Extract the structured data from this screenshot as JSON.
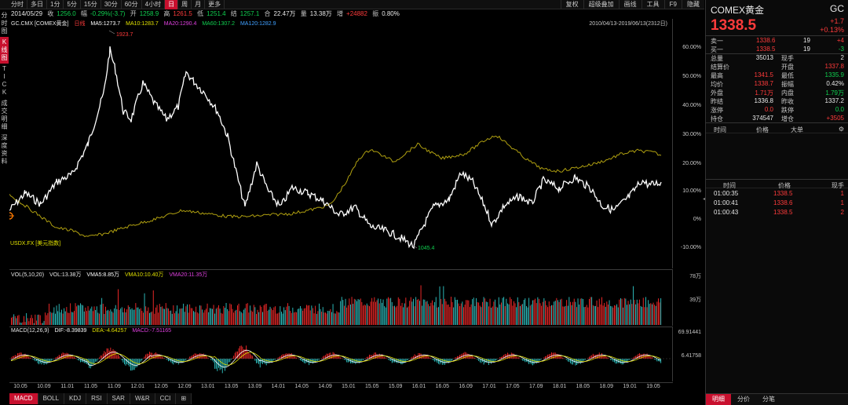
{
  "toolbar": {
    "timeframes": [
      "分时",
      "多日",
      "1分",
      "5分",
      "15分",
      "30分",
      "60分",
      "4小时",
      "日",
      "周",
      "月",
      "更多"
    ],
    "active_index": 8,
    "right_tools": [
      "复权",
      "超级叠加",
      "画线",
      "工具",
      "F9",
      "隐藏"
    ]
  },
  "quote_line": {
    "date": "2014/05/29",
    "close_label": "收",
    "close": "1256.0",
    "chg_label": "幅",
    "chg": "-0.29%(-3.7)",
    "open_label": "开",
    "open": "1258.9",
    "high_label": "高",
    "high": "1261.5",
    "low_label": "低",
    "low": "1251.4",
    "settle_label": "结",
    "settle": "1257.1",
    "amount_label": "合",
    "amount": "22.47万",
    "volume_label": "量",
    "volume": "13.38万",
    "oi_label": "增",
    "oi": "+24882",
    "amp_label": "振",
    "amp": "0.80%"
  },
  "left_tabs": [
    "分时图",
    "K线图",
    "TICK",
    "成交明细",
    "深度资料"
  ],
  "left_active": 1,
  "main_legend": {
    "symbol": "GC.CMX [COMEX黄金]",
    "period": "日线",
    "ma5": "MA5:1273.7",
    "ma10": "MA10:1283.7",
    "ma20": "MA20:1290.4",
    "ma60": "MA60:1307.2",
    "ma120": "MA120:1282.9",
    "range": "2010/04/13-2019/06/13(2312日)"
  },
  "overlay_label": "USDX.FX [美元指数]",
  "annotations": {
    "high": "1923.7",
    "low": "1045.4"
  },
  "pct_axis": [
    "60.00%",
    "50.00%",
    "40.00%",
    "30.00%",
    "20.00%",
    "10.00%",
    "0%",
    "-10.00%"
  ],
  "vol_legend": {
    "name": "VOL(5,10,20)",
    "vol": "VOL:13.38万",
    "vma5": "VMA5:8.85万",
    "vma10": "VMA10:10.40万",
    "vma20": "VMA20:11.35万"
  },
  "vol_axis": [
    "78万",
    "39万"
  ],
  "macd_legend": {
    "name": "MACD(12,26,9)",
    "dif": "DIF:-8.39839",
    "dea": "DEA:-4.64257",
    "macd": "MACD:-7.51165"
  },
  "macd_axis": [
    "69.91441",
    "6.41758"
  ],
  "x_labels": [
    "10.05",
    "10.09",
    "11.01",
    "11.05",
    "11.09",
    "12.01",
    "12.05",
    "12.09",
    "13.01",
    "13.05",
    "13.09",
    "14.01",
    "14.05",
    "14.09",
    "15.01",
    "15.05",
    "15.09",
    "16.01",
    "16.05",
    "16.09",
    "17.01",
    "17.05",
    "17.09",
    "18.01",
    "18.05",
    "18.09",
    "19.01",
    "19.05"
  ],
  "bottom_tabs": [
    "MACD",
    "BOLL",
    "KDJ",
    "RSI",
    "SAR",
    "W&R",
    "CCI",
    "⊞"
  ],
  "bottom_active": 0,
  "right_panel": {
    "name": "COMEX黄金",
    "code": "GC",
    "price": "1338.5",
    "change": "+1.7",
    "change_pct": "+0.13%",
    "sell": {
      "label": "卖一",
      "price": "1338.6",
      "qty": "19",
      "chg": "+4"
    },
    "buy": {
      "label": "买一",
      "price": "1338.5",
      "qty": "19",
      "chg": "-3"
    },
    "stats": [
      [
        "总量",
        "35013",
        "现手",
        "2"
      ],
      [
        "结算价",
        "",
        "开盘",
        "1337.8"
      ],
      [
        "最高",
        "1341.5",
        "最低",
        "1335.9"
      ],
      [
        "均价",
        "1338.7",
        "振幅",
        "0.42%"
      ],
      [
        "外盘",
        "1.71万",
        "内盘",
        "1.79万"
      ],
      [
        "昨结",
        "1336.8",
        "昨收",
        "1337.2"
      ],
      [
        "涨停",
        "0.0",
        "跌停",
        "0.0"
      ],
      [
        "持仓",
        "374547",
        "增仓",
        "+3505"
      ]
    ],
    "big_header": {
      "time": "时间",
      "price": "价格",
      "side": "大单"
    },
    "trade_header": {
      "time": "时间",
      "price": "价格",
      "qty": "现手"
    },
    "trades": [
      {
        "time": "01:00:35",
        "price": "1338.5",
        "qty": "1"
      },
      {
        "time": "01:00:41",
        "price": "1338.6",
        "qty": "1"
      },
      {
        "time": "01:00:43",
        "price": "1338.5",
        "qty": "2"
      }
    ],
    "tabs": [
      "明细",
      "分价",
      "分笔"
    ],
    "tab_active": 0
  },
  "colors": {
    "up": "#ff3b3b",
    "down": "#10d050",
    "price_line": "#ffffff",
    "overlay_line": "#b0a010",
    "vol_up": "#ff2b2b",
    "vol_down": "#30c8c8",
    "accent": "#c8102e"
  }
}
